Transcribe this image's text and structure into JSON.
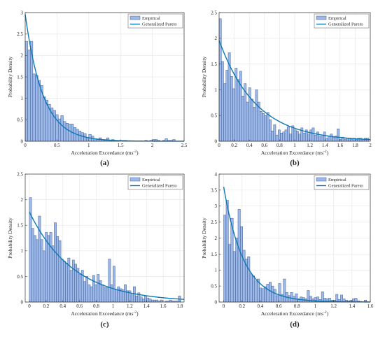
{
  "figure": {
    "colors": {
      "bar_fill": "#9db9e8",
      "bar_stroke": "#2f4f8f",
      "curve": "#0b78b5",
      "axis": "#333333"
    }
  },
  "legend": {
    "empirical": "Empirical",
    "fit": "Generalized Pareto"
  },
  "chart_data": [
    {
      "type": "bar",
      "panel_label": "(a)",
      "xlabel": "Acceleration Exceedance (ms",
      "xlabel_sup": "-2",
      "xlabel_end": ")",
      "ylabel": "Probability Density",
      "xlim": [
        0,
        2.5
      ],
      "ylim": [
        0,
        3
      ],
      "xticks": [
        0,
        0.5,
        1,
        1.5,
        2,
        2.5
      ],
      "yticks": [
        0,
        0.5,
        1,
        1.5,
        2,
        2.5,
        3
      ],
      "legend": "top-right",
      "grid": true,
      "bin_width": 0.04,
      "bin_start": 0.02,
      "values": [
        2.33,
        2.13,
        2.33,
        1.57,
        1.54,
        1.42,
        1.3,
        1.04,
        0.96,
        0.86,
        0.78,
        0.72,
        0.62,
        0.52,
        0.6,
        0.46,
        0.42,
        0.4,
        0.4,
        0.32,
        0.28,
        0.24,
        0.2,
        0.18,
        0.08,
        0.16,
        0.12,
        0.06,
        0.04,
        0.08,
        0.04,
        0.02,
        0.08,
        0.02,
        0.04,
        0.02,
        0.02,
        0.0,
        0.02,
        0.02,
        0.0,
        0.0,
        0.0,
        0.0,
        0.0,
        0.0,
        0.0,
        0.02,
        0.0,
        0.02,
        0.04,
        0.04,
        0.02,
        0.0,
        0.02,
        0.06,
        0.02,
        0.02,
        0.04
      ],
      "fit": {
        "name": "Generalized Pareto",
        "y0": 2.96,
        "decay": 3.6
      }
    },
    {
      "type": "bar",
      "panel_label": "(b)",
      "xlabel": "Acceleration Exceedance (ms",
      "xlabel_sup": "-2",
      "xlabel_end": ")",
      "ylabel": "Probability Density",
      "xlim": [
        0,
        2.0
      ],
      "ylim": [
        0,
        2.5
      ],
      "xticks": [
        0,
        0.2,
        0.4,
        0.6,
        0.8,
        1,
        1.2,
        1.4,
        1.6,
        1.8,
        2
      ],
      "yticks": [
        0,
        0.5,
        1,
        1.5,
        2,
        2.5
      ],
      "legend": "top-right",
      "grid": true,
      "bin_width": 0.03,
      "bin_start": 0.015,
      "values": [
        2.38,
        1.55,
        1.12,
        1.38,
        1.72,
        1.26,
        1.02,
        1.42,
        1.2,
        1.36,
        0.88,
        1.12,
        0.76,
        1.04,
        0.82,
        0.66,
        1.0,
        0.76,
        0.58,
        0.54,
        0.5,
        0.56,
        0.42,
        0.2,
        0.32,
        0.12,
        0.22,
        0.16,
        0.18,
        0.22,
        0.28,
        0.14,
        0.3,
        0.22,
        0.2,
        0.14,
        0.26,
        0.16,
        0.22,
        0.14,
        0.22,
        0.26,
        0.12,
        0.18,
        0.1,
        0.1,
        0.18,
        0.06,
        0.1,
        0.14,
        0.08,
        0.1,
        0.24,
        0.04,
        0.08,
        0.04,
        0.06,
        0.06,
        0.04,
        0.06,
        0.04,
        0.06,
        0.06,
        0.04,
        0.06,
        0.06
      ],
      "fit": {
        "name": "Generalized Pareto",
        "y0": 1.96,
        "decay": 2.05
      }
    },
    {
      "type": "bar",
      "panel_label": "(c)",
      "xlabel": "Acceleration Exceedance (ms",
      "xlabel_sup": "-2",
      "xlabel_end": ")",
      "ylabel": "Probability Density",
      "xlim": [
        -0.05,
        1.85
      ],
      "ylim": [
        0,
        2.5
      ],
      "xticks": [
        0,
        0.2,
        0.4,
        0.6,
        0.8,
        1,
        1.2,
        1.4,
        1.6,
        1.8
      ],
      "yticks": [
        0,
        0.5,
        1,
        1.5,
        2,
        2.5
      ],
      "legend": "top-right",
      "grid": true,
      "bin_width": 0.027,
      "bin_start": 0.013,
      "values": [
        2.04,
        1.44,
        1.3,
        1.22,
        1.68,
        1.22,
        1.0,
        1.36,
        1.3,
        1.36,
        1.1,
        1.55,
        1.28,
        1.2,
        0.84,
        0.8,
        0.76,
        0.86,
        0.62,
        0.82,
        0.74,
        0.66,
        0.54,
        0.62,
        0.4,
        0.5,
        0.34,
        0.3,
        0.52,
        0.34,
        0.54,
        0.42,
        0.34,
        0.28,
        0.28,
        0.84,
        0.34,
        0.7,
        0.24,
        0.3,
        0.26,
        0.24,
        0.34,
        0.22,
        0.22,
        0.14,
        0.3,
        0.12,
        0.18,
        0.1,
        0.06,
        0.12,
        0.08,
        0.06,
        0.04,
        0.04,
        0.04,
        0.02,
        0.04,
        0.0,
        0.02,
        0.02,
        0.04,
        0.02,
        0.02,
        0.02,
        0.12
      ],
      "fit": {
        "name": "Generalized Pareto",
        "y0": 1.76,
        "decay": 1.9
      }
    },
    {
      "type": "bar",
      "panel_label": "(d)",
      "xlabel": "Acceleration Exceedance (ms",
      "xlabel_sup": "-2",
      "xlabel_end": ")",
      "ylabel": "Probability Density",
      "xlim": [
        -0.05,
        1.6
      ],
      "ylim": [
        0,
        4
      ],
      "xticks": [
        0,
        0.2,
        0.4,
        0.6,
        0.8,
        1,
        1.2,
        1.4,
        1.6
      ],
      "yticks": [
        0,
        0.5,
        1,
        1.5,
        2,
        2.5,
        3,
        3.5,
        4
      ],
      "legend": "top-right",
      "grid": true,
      "bin_width": 0.026,
      "bin_start": 0.013,
      "values": [
        2.72,
        3.18,
        1.8,
        2.62,
        1.58,
        2.0,
        2.9,
        2.36,
        1.62,
        1.34,
        1.42,
        0.88,
        0.82,
        0.66,
        0.72,
        0.44,
        0.42,
        0.48,
        0.56,
        0.62,
        0.5,
        0.4,
        0.2,
        0.58,
        0.24,
        0.72,
        0.3,
        0.2,
        0.3,
        0.18,
        0.26,
        0.1,
        0.16,
        0.14,
        0.1,
        0.36,
        0.18,
        0.1,
        0.14,
        0.16,
        0.08,
        0.32,
        0.12,
        0.1,
        0.12,
        0.06,
        0.06,
        0.24,
        0.08,
        0.22,
        0.1,
        0.06,
        0.04,
        0.06,
        0.1,
        0.12,
        0.04,
        0.02,
        0.0,
        0.06
      ],
      "fit": {
        "name": "Generalized Pareto",
        "y0": 3.6,
        "decay": 4.6
      }
    }
  ]
}
